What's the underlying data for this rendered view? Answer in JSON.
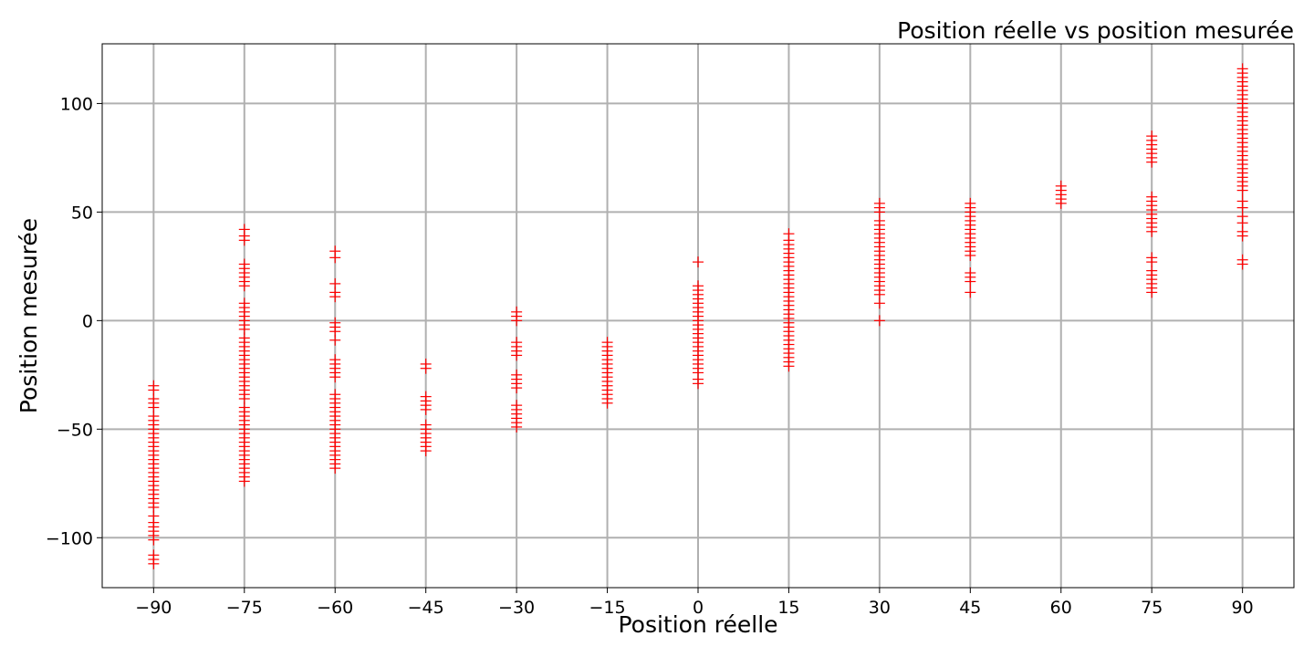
{
  "chart_data": {
    "type": "scatter",
    "title": "Position réelle vs position mesurée",
    "xlabel": "Position réelle",
    "ylabel": "Position mesurée",
    "xlim": [
      -98.5,
      98.5
    ],
    "ylim": [
      -123,
      127.5
    ],
    "xticks": [
      -90,
      -75,
      -60,
      -45,
      -30,
      -15,
      0,
      15,
      30,
      45,
      60,
      75,
      90
    ],
    "xtick_labels": [
      "−90",
      "−75",
      "−60",
      "−45",
      "−30",
      "−15",
      "0",
      "15",
      "30",
      "45",
      "60",
      "75",
      "90"
    ],
    "yticks": [
      -100,
      -50,
      0,
      50,
      100
    ],
    "ytick_labels": [
      "−100",
      "−50",
      "0",
      "50",
      "100"
    ],
    "grid": true,
    "marker": "+",
    "marker_color": "#ff0000",
    "series": [
      {
        "points": [
          {
            "x": -90,
            "y": [
              -112,
              -110,
              -108,
              -101,
              -99,
              -97,
              -95,
              -93,
              -90,
              -86,
              -84,
              -82,
              -80,
              -78,
              -76,
              -74,
              -72,
              -70,
              -68,
              -66,
              -64,
              -62,
              -60,
              -58,
              -56,
              -54,
              -52,
              -50,
              -48,
              -46,
              -44,
              -40,
              -38,
              -36,
              -32,
              -30
            ]
          },
          {
            "x": -75,
            "y": [
              -74,
              -72,
              -70,
              -68,
              -66,
              -64,
              -62,
              -60,
              -58,
              -56,
              -54,
              -52,
              -50,
              -48,
              -46,
              -44,
              -42,
              -40,
              -36,
              -34,
              -32,
              -30,
              -28,
              -26,
              -24,
              -22,
              -20,
              -18,
              -16,
              -14,
              -12,
              -10,
              -8,
              -4,
              -2,
              0,
              2,
              4,
              6,
              8,
              16,
              18,
              20,
              22,
              24,
              26,
              37,
              39,
              42
            ]
          },
          {
            "x": -60,
            "y": [
              -68,
              -66,
              -64,
              -62,
              -60,
              -58,
              -56,
              -54,
              -52,
              -50,
              -48,
              -46,
              -44,
              -42,
              -40,
              -38,
              -36,
              -34,
              -26,
              -24,
              -22,
              -20,
              -18,
              -9,
              -5,
              -3,
              -1,
              11,
              13,
              17,
              29,
              32
            ]
          },
          {
            "x": -45,
            "y": [
              -60,
              -58,
              -56,
              -54,
              -52,
              -50,
              -48,
              -41,
              -39,
              -37,
              -35,
              -22,
              -20
            ]
          },
          {
            "x": -30,
            "y": [
              -49,
              -47,
              -45,
              -43,
              -41,
              -39,
              -31,
              -29,
              -27,
              -25,
              -16,
              -14,
              -12,
              -10,
              0,
              2,
              4
            ]
          },
          {
            "x": -15,
            "y": [
              -38,
              -36,
              -34,
              -32,
              -30,
              -28,
              -26,
              -24,
              -22,
              -20,
              -18,
              -16,
              -14,
              -12,
              -10
            ]
          },
          {
            "x": 0,
            "y": [
              -29,
              -27,
              -24,
              -22,
              -20,
              -18,
              -16,
              -14,
              -12,
              -10,
              -8,
              -6,
              -4,
              -2,
              0,
              2,
              4,
              6,
              8,
              10,
              12,
              14,
              16,
              27
            ]
          },
          {
            "x": 15,
            "y": [
              -21,
              -19,
              -17,
              -15,
              -13,
              -11,
              -9,
              -7,
              -5,
              -3,
              -1,
              1,
              3,
              5,
              7,
              9,
              11,
              13,
              15,
              17,
              19,
              21,
              23,
              25,
              27,
              29,
              31,
              33,
              35,
              37,
              40
            ]
          },
          {
            "x": 30,
            "y": [
              0,
              8,
              12,
              14,
              16,
              18,
              20,
              22,
              24,
              26,
              28,
              30,
              32,
              34,
              36,
              38,
              40,
              42,
              44,
              46,
              50,
              52,
              54
            ]
          },
          {
            "x": 45,
            "y": [
              13,
              18,
              20,
              22,
              30,
              32,
              34,
              36,
              38,
              40,
              42,
              44,
              46,
              48,
              50,
              52,
              54
            ]
          },
          {
            "x": 60,
            "y": [
              54,
              56,
              58,
              60,
              62
            ]
          },
          {
            "x": 75,
            "y": [
              13,
              15,
              17,
              19,
              21,
              23,
              27,
              29,
              41,
              43,
              45,
              47,
              49,
              51,
              53,
              55,
              57,
              73,
              75,
              77,
              79,
              81,
              83,
              85
            ]
          },
          {
            "x": 90,
            "y": [
              26,
              28,
              39,
              41,
              45,
              48,
              52,
              55,
              60,
              62,
              64,
              66,
              68,
              70,
              72,
              74,
              76,
              78,
              80,
              82,
              84,
              86,
              88,
              90,
              92,
              94,
              96,
              98,
              100,
              102,
              104,
              106,
              108,
              110,
              112,
              114,
              116
            ]
          }
        ]
      }
    ]
  }
}
